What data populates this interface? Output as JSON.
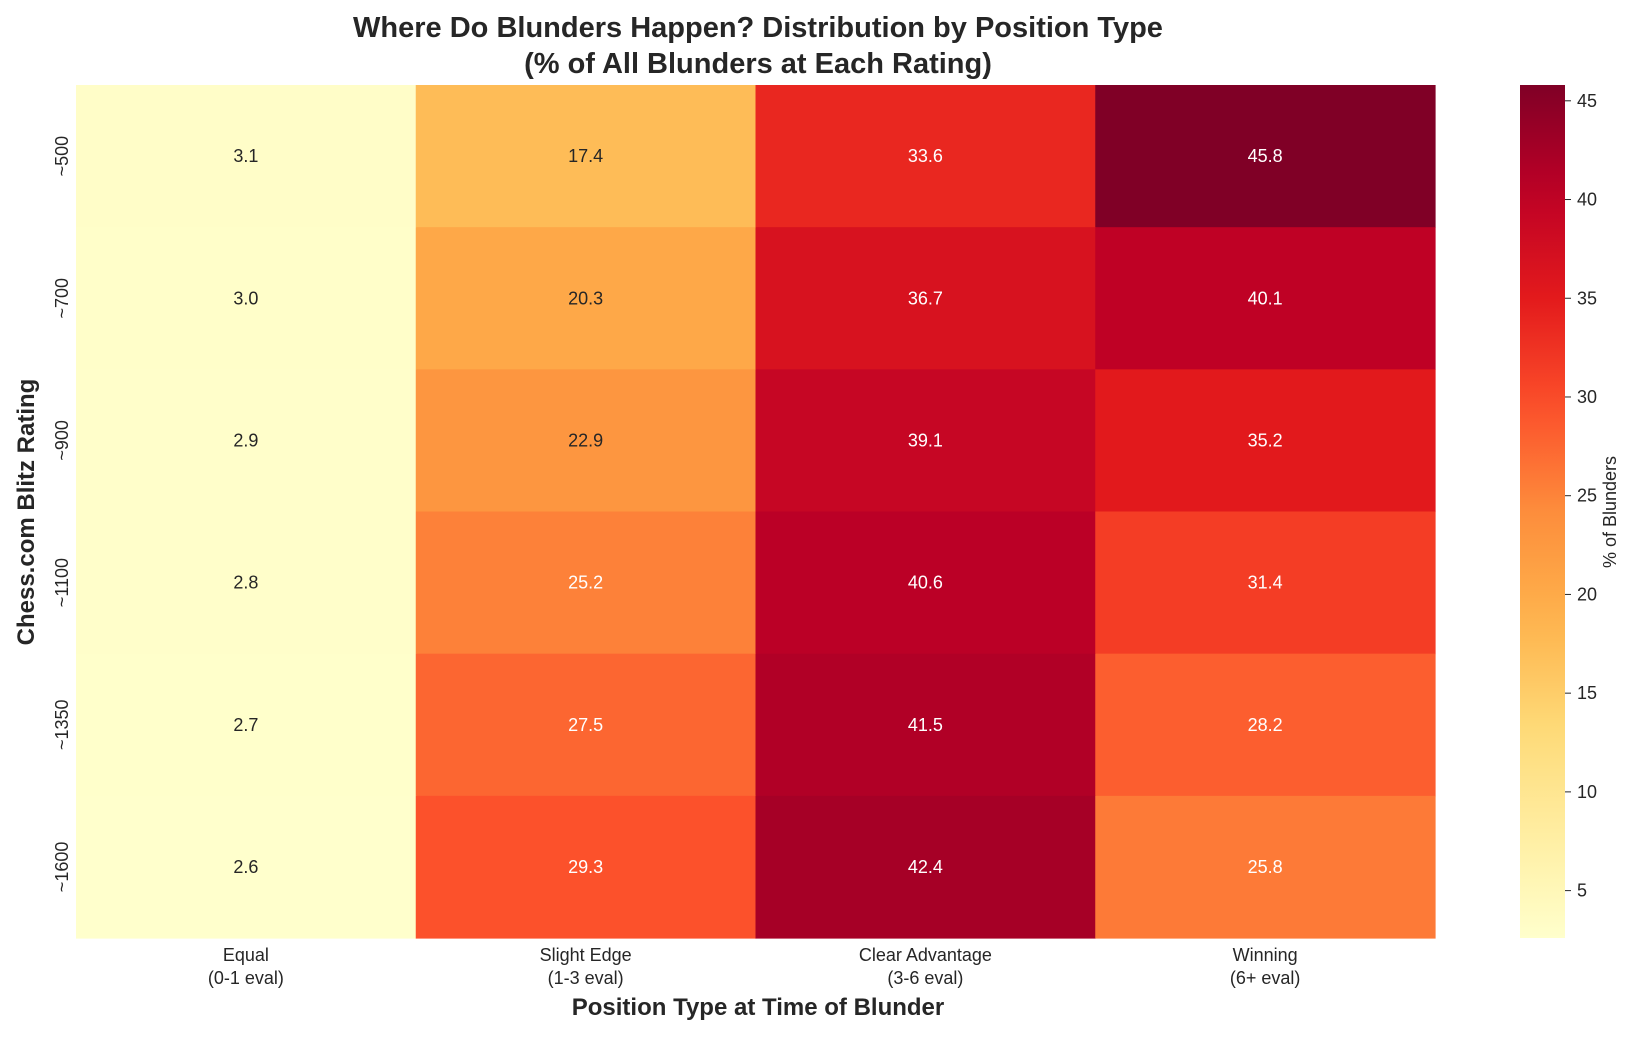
{
  "chart_data": {
    "type": "heatmap",
    "title_line1": "Where Do Blunders Happen? Distribution by Position Type",
    "title_line2": "(% of All Blunders at Each Rating)",
    "xlabel": "Position Type at Time of Blunder",
    "ylabel": "Chess.com Blitz Rating",
    "x_categories": [
      {
        "line1": "Equal",
        "line2": "(0-1 eval)"
      },
      {
        "line1": "Slight Edge",
        "line2": "(1-3 eval)"
      },
      {
        "line1": "Clear Advantage",
        "line2": "(3-6 eval)"
      },
      {
        "line1": "Winning",
        "line2": "(6+ eval)"
      }
    ],
    "y_categories": [
      "~500",
      "~700",
      "~900",
      "~1100",
      "~1350",
      "~1600"
    ],
    "values": [
      [
        3.1,
        17.4,
        33.6,
        45.8
      ],
      [
        3.0,
        20.3,
        36.7,
        40.1
      ],
      [
        2.9,
        22.9,
        39.1,
        35.2
      ],
      [
        2.8,
        25.2,
        40.6,
        31.4
      ],
      [
        2.7,
        27.5,
        41.5,
        28.2
      ],
      [
        2.6,
        29.3,
        42.4,
        25.8
      ]
    ],
    "value_format": "0.1f",
    "colormap": "YlOrRd",
    "vmin": 2.6,
    "vmax": 45.8,
    "colorbar": {
      "label": "% of Blunders",
      "ticks": [
        5,
        10,
        15,
        20,
        25,
        30,
        35,
        40,
        45
      ]
    }
  }
}
